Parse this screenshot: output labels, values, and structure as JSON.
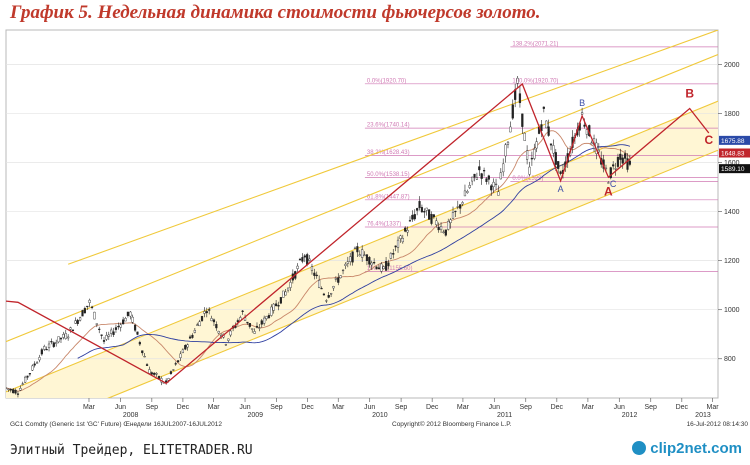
{
  "title": "График 5.   Недельная динамика стоимости фьючерсов золото.",
  "footer": {
    "text": "Элитный Трейдер, ELITETRADER.RU",
    "logo": "clip2net.com"
  },
  "colors": {
    "price": "#222222",
    "ma_fast": "#c8876a",
    "ma_slow": "#2f3fa0",
    "channel": "#f0c93a",
    "channel_fill": "#fff6d4",
    "zigzag": "#c0242b",
    "fib": "#d07ab4",
    "labels_blue": "#3c4ea8",
    "labels_red": "#c0242b"
  },
  "chart_data": {
    "type": "line",
    "subtype": "candlestick",
    "xlim": [
      "2007-07-16",
      "2013-03-31"
    ],
    "ylim": [
      640,
      2140
    ],
    "yticks": [
      800,
      1000,
      1200,
      1400,
      1600,
      1800,
      2000
    ],
    "x_month_labels": [
      {
        "d": "2008-03",
        "t": "Mar"
      },
      {
        "d": "2008-06",
        "t": "Jun"
      },
      {
        "d": "2008-09",
        "t": "Sep"
      },
      {
        "d": "2008-12",
        "t": "Dec"
      },
      {
        "d": "2009-03",
        "t": "Mar"
      },
      {
        "d": "2009-06",
        "t": "Jun"
      },
      {
        "d": "2009-09",
        "t": "Sep"
      },
      {
        "d": "2009-12",
        "t": "Dec"
      },
      {
        "d": "2010-03",
        "t": "Mar"
      },
      {
        "d": "2010-06",
        "t": "Jun"
      },
      {
        "d": "2010-09",
        "t": "Sep"
      },
      {
        "d": "2010-12",
        "t": "Dec"
      },
      {
        "d": "2011-03",
        "t": "Mar"
      },
      {
        "d": "2011-06",
        "t": "Jun"
      },
      {
        "d": "2011-09",
        "t": "Sep"
      },
      {
        "d": "2011-12",
        "t": "Dec"
      },
      {
        "d": "2012-03",
        "t": "Mar"
      },
      {
        "d": "2012-06",
        "t": "Jun"
      },
      {
        "d": "2012-09",
        "t": "Sep"
      },
      {
        "d": "2012-12",
        "t": "Dec"
      },
      {
        "d": "2013-03",
        "t": "Mar"
      }
    ],
    "x_year_labels": [
      {
        "d": "2008-07",
        "t": "2008"
      },
      {
        "d": "2009-07",
        "t": "2009"
      },
      {
        "d": "2010-07",
        "t": "2010"
      },
      {
        "d": "2011-07",
        "t": "2011"
      },
      {
        "d": "2012-07",
        "t": "2012"
      },
      {
        "d": "2013-02",
        "t": "2013"
      }
    ],
    "price_anchors": [
      [
        "2007-07-16",
        680
      ],
      [
        "2007-08-20",
        665
      ],
      [
        "2007-11-05",
        840
      ],
      [
        "2008-01-14",
        900
      ],
      [
        "2008-03-17",
        1030
      ],
      [
        "2008-04-28",
        870
      ],
      [
        "2008-07-14",
        985
      ],
      [
        "2008-09-08",
        750
      ],
      [
        "2008-10-27",
        700
      ],
      [
        "2009-02-23",
        1005
      ],
      [
        "2009-04-20",
        870
      ],
      [
        "2009-06-08",
        985
      ],
      [
        "2009-07-13",
        905
      ],
      [
        "2009-10-12",
        1070
      ],
      [
        "2009-12-07",
        1225
      ],
      [
        "2010-02-08",
        1050
      ],
      [
        "2010-05-10",
        1245
      ],
      [
        "2010-07-26",
        1160
      ],
      [
        "2010-11-08",
        1420
      ],
      [
        "2011-01-24",
        1320
      ],
      [
        "2011-05-02",
        1570
      ],
      [
        "2011-06-27",
        1480
      ],
      [
        "2011-08-22",
        1920
      ],
      [
        "2011-09-26",
        1560
      ],
      [
        "2011-11-07",
        1800
      ],
      [
        "2011-12-26",
        1540
      ],
      [
        "2012-02-27",
        1790
      ],
      [
        "2012-05-14",
        1540
      ],
      [
        "2012-06-18",
        1630
      ],
      [
        "2012-07-16",
        1589
      ]
    ],
    "zigzag": [
      [
        "2007-07-16",
        1035
      ],
      [
        "2007-08-20",
        1030
      ],
      [
        "2008-10-27",
        700
      ],
      [
        "2011-09-05",
        1920
      ],
      [
        "2011-12-26",
        1525
      ],
      [
        "2012-02-27",
        1790
      ],
      [
        "2012-05-14",
        1540
      ],
      [
        "2013-01-07",
        1820
      ],
      [
        "2013-03-04",
        1720
      ]
    ],
    "channel_lines": [
      {
        "from": [
          "2007-07-16",
          870
        ],
        "to": [
          "2013-03-31",
          2040
        ]
      },
      {
        "from": [
          "2007-07-16",
          665
        ],
        "to": [
          "2013-03-31",
          1850
        ]
      },
      {
        "from": [
          "2007-07-16",
          470
        ],
        "to": [
          "2013-03-31",
          1650
        ]
      },
      {
        "from": [
          "2008-01-14",
          1185
        ],
        "to": [
          "2013-03-31",
          2140
        ]
      }
    ],
    "fib_levels": [
      {
        "value": 2071.21,
        "label": "138.2%(2071.21)",
        "x0": "2011-08-01"
      },
      {
        "value": 1920.7,
        "label": "0.0%(1920.70)",
        "x0": "2010-06-01"
      },
      {
        "value": 1920.7,
        "label": "100.0%(1920.70)",
        "x0": "2011-08-01"
      },
      {
        "value": 1740.14,
        "label": "23.6%(1740.14)",
        "x0": "2010-06-01"
      },
      {
        "value": 1628.43,
        "label": "38.2%(1628.43)",
        "x0": "2010-06-01"
      },
      {
        "value": 1538.15,
        "label": "50.0%(1538.15)",
        "x0": "2010-06-01"
      },
      {
        "value": 1522.0,
        "label": "0.0%(1522)",
        "x0": "2011-08-01"
      },
      {
        "value": 1447.87,
        "label": "61.8%(1447.87)",
        "x0": "2010-06-01"
      },
      {
        "value": 1337.0,
        "label": "76.4%(1337)",
        "x0": "2010-06-01"
      },
      {
        "value": 1155.6,
        "label": "100.0%(1155.60)",
        "x0": "2010-06-01"
      }
    ],
    "price_tags": [
      {
        "value": 1675.88,
        "label": "1675.88",
        "color": "#2b4aa8"
      },
      {
        "value": 1648.83,
        "label": "1648.83",
        "color": "#c0242b"
      },
      {
        "value": 1589.1,
        "label": "1589.10",
        "color": "#111111"
      }
    ],
    "wave_labels": [
      {
        "t": "A",
        "d": "2011-12-26",
        "v": 1480,
        "color": "blue"
      },
      {
        "t": "B",
        "d": "2012-02-27",
        "v": 1830,
        "color": "blue"
      },
      {
        "t": "C",
        "d": "2012-05-28",
        "v": 1500,
        "color": "blue"
      },
      {
        "t": "A",
        "d": "2012-05-14",
        "v": 1465,
        "color": "red"
      },
      {
        "t": "B",
        "d": "2013-01-07",
        "v": 1865,
        "color": "red"
      },
      {
        "t": "C",
        "d": "2013-03-04",
        "v": 1675,
        "color": "red"
      }
    ],
    "legend_text": "GC1 Comdty (Generic 1st 'GC' Future) Œнедели 16JUL2007-16JUL2012",
    "copyright": "Copyright© 2012 Bloomberg Finance L.P.",
    "timestamp": "16-Jul-2012 08:14:30"
  }
}
